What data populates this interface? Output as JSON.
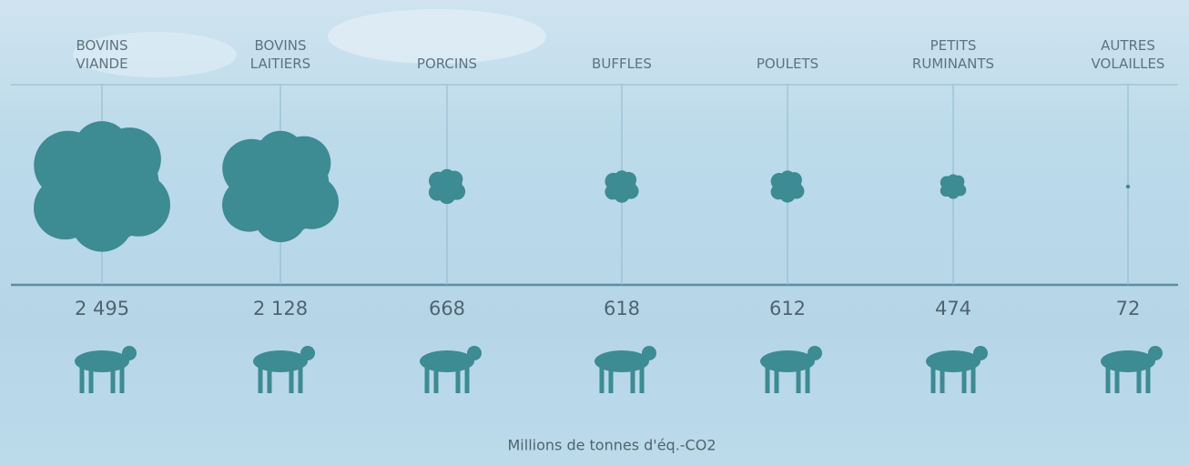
{
  "chart_data": {
    "type": "bubble",
    "categories": [
      "BOVINS VIANDE",
      "BOVINS LAITIERS",
      "PORCINS",
      "BUFFLES",
      "POULETS",
      "PETITS RUMINANTS",
      "AUTRES VOLAILLES"
    ],
    "values": [
      2495,
      2128,
      668,
      618,
      612,
      474,
      72
    ],
    "value_labels": [
      "2 495",
      "2 128",
      "668",
      "618",
      "612",
      "474",
      "72"
    ],
    "unit_label": "Millions de tonnes d'éq.-CO2",
    "color": "#3d8b93"
  }
}
